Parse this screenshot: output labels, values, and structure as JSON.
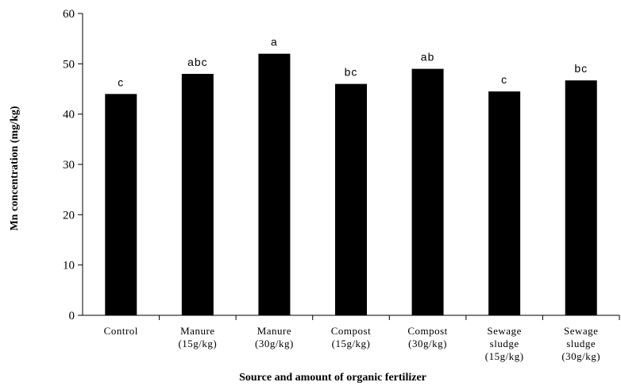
{
  "chart_data": {
    "type": "bar",
    "xlabel": "Source and amount of organic fertilizer",
    "ylabel": "Mn concentration (mg/kg)",
    "ylim": [
      0,
      60
    ],
    "yticks": [
      "0",
      "10",
      "20",
      "30",
      "40",
      "50",
      "60"
    ],
    "grid": false,
    "bar_color": "#000000",
    "categories": [
      [
        "Control"
      ],
      [
        "Manure",
        "(15g/kg)"
      ],
      [
        "Manure",
        "(30g/kg)"
      ],
      [
        "Compost",
        "(15g/kg)"
      ],
      [
        "Compost",
        "(30g/kg)"
      ],
      [
        "Sewage",
        "sludge",
        "(15g/kg)"
      ],
      [
        "Sewage",
        "sludge",
        "(30g/kg)"
      ]
    ],
    "values": [
      44,
      48,
      52,
      46,
      49,
      44.5,
      46.7
    ],
    "significance": [
      "c",
      "abc",
      "a",
      "bc",
      "ab",
      "c",
      "bc"
    ]
  }
}
